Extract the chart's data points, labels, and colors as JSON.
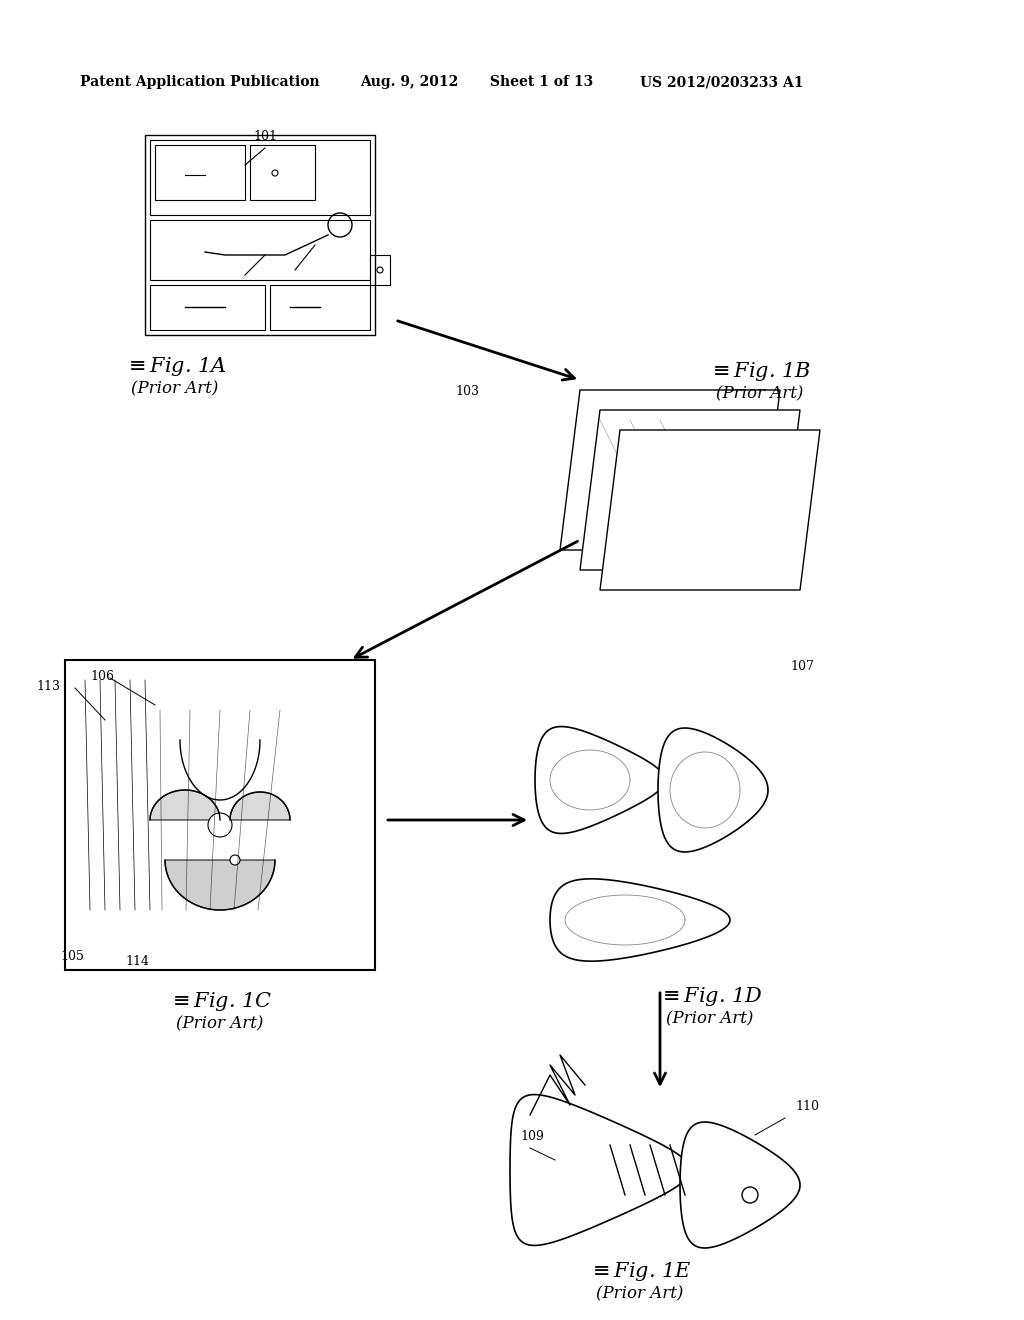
{
  "background_color": "#ffffff",
  "header_text": "Patent Application Publication",
  "header_date": "Aug. 9, 2012",
  "header_sheet": "Sheet 1 of 13",
  "header_patent": "US 2012/0203233 A1",
  "fig1a_label": "Fig. 1A",
  "fig1a_sub": "(Prior Art)",
  "fig1b_label": "Fig. 1B",
  "fig1b_sub": "(Prior Art)",
  "fig1c_label": "Fig. 1C",
  "fig1c_sub": "(Prior Art)",
  "fig1d_label": "Fig. 1D",
  "fig1d_sub": "(Prior Art)",
  "fig1e_label": "Fig. 1E",
  "fig1e_sub": "(Prior Art)",
  "ref_101": "101",
  "ref_103": "103",
  "ref_105": "105",
  "ref_106": "106",
  "ref_107": "107",
  "ref_109": "109",
  "ref_110": "110",
  "ref_113": "113",
  "ref_114": "114"
}
